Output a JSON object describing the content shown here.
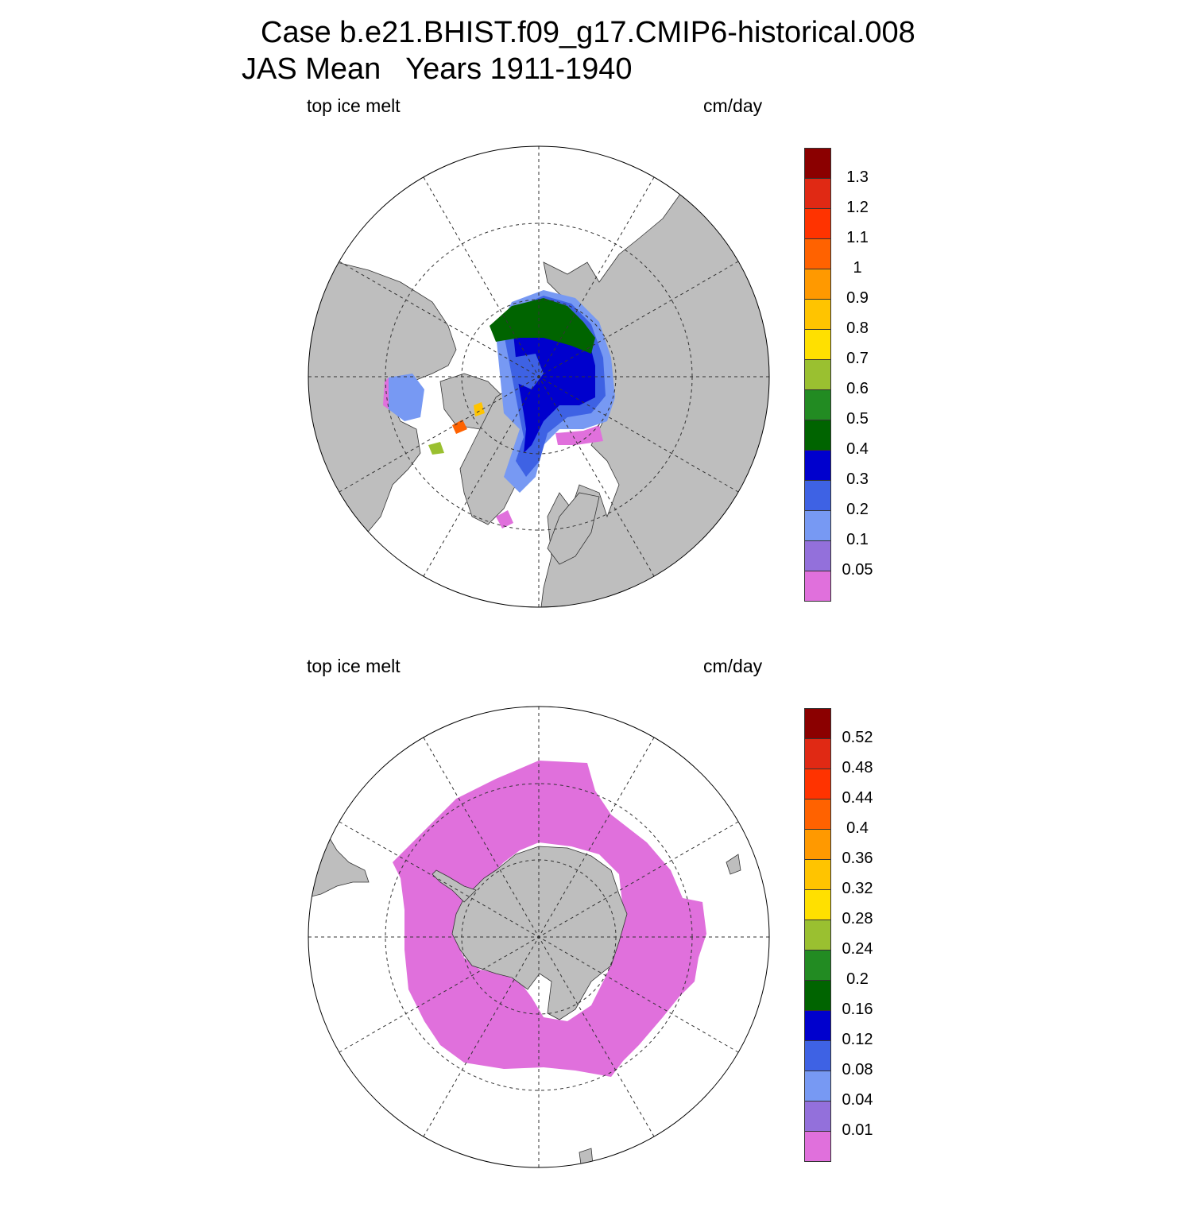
{
  "title": {
    "line1": "Case b.e21.BHIST.f09_g17.CMIP6-historical.008",
    "line2": "JAS Mean   Years 1911-1940"
  },
  "panels": [
    {
      "hemisphere": "north",
      "left_label": "top ice melt",
      "right_label": "cm/day",
      "colorbar": {
        "levels": [
          "0.05",
          "0.1",
          "0.2",
          "0.3",
          "0.4",
          "0.5",
          "0.6",
          "0.7",
          "0.8",
          "0.9",
          "1",
          "1.1",
          "1.2",
          "1.3"
        ],
        "colors": [
          "#e070dc",
          "#9370db",
          "#7799f3",
          "#3e62e4",
          "#0000cd",
          "#006400",
          "#228b22",
          "#9ac030",
          "#ffe000",
          "#ffc400",
          "#ff9900",
          "#ff6200",
          "#ff3300",
          "#e02914",
          "#8b0000"
        ]
      }
    },
    {
      "hemisphere": "south",
      "left_label": "top ice melt",
      "right_label": "cm/day",
      "colorbar": {
        "levels": [
          "0.01",
          "0.04",
          "0.08",
          "0.12",
          "0.16",
          "0.2",
          "0.24",
          "0.28",
          "0.32",
          "0.36",
          "0.4",
          "0.44",
          "0.48",
          "0.52"
        ],
        "colors": [
          "#e070dc",
          "#9370db",
          "#7799f3",
          "#3e62e4",
          "#0000cd",
          "#006400",
          "#228b22",
          "#9ac030",
          "#ffe000",
          "#ffc400",
          "#ff9900",
          "#ff6200",
          "#ff3300",
          "#e02914",
          "#8b0000"
        ]
      }
    }
  ],
  "map_colors": {
    "land": "#bebebe",
    "ocean": "#ffffff"
  }
}
